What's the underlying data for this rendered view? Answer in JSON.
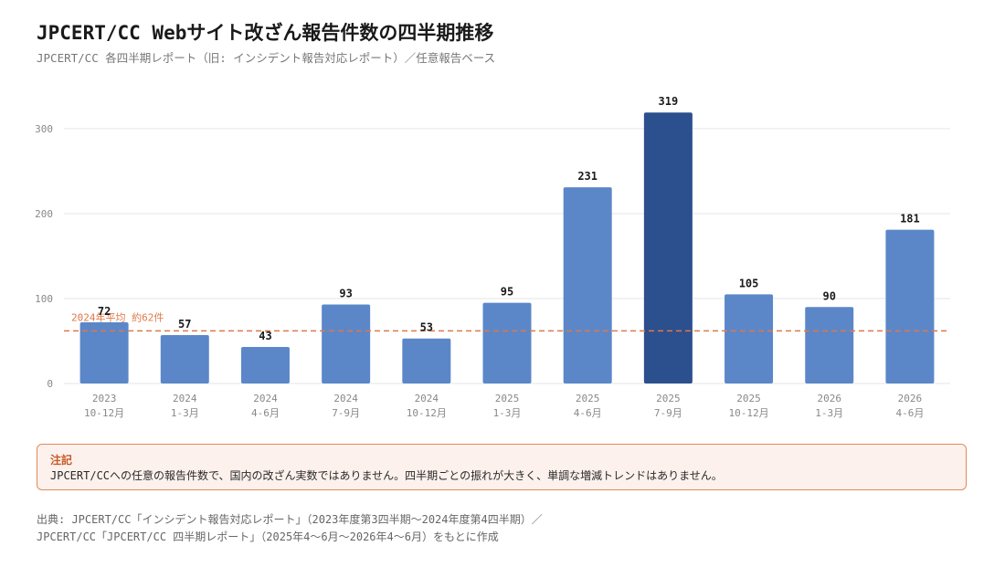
{
  "header": {
    "title": "JPCERT/CC Webサイト改ざん報告件数の四半期推移",
    "subtitle": "JPCERT/CC 各四半期レポート（旧: インシデント報告対応レポート）／任意報告ベース"
  },
  "chart_data": {
    "type": "bar",
    "categories": [
      [
        "2023",
        "10-12月"
      ],
      [
        "2024",
        "1-3月"
      ],
      [
        "2024",
        "4-6月"
      ],
      [
        "2024",
        "7-9月"
      ],
      [
        "2024",
        "10-12月"
      ],
      [
        "2025",
        "1-3月"
      ],
      [
        "2025",
        "4-6月"
      ],
      [
        "2025",
        "7-9月"
      ],
      [
        "2025",
        "10-12月"
      ],
      [
        "2026",
        "1-3月"
      ],
      [
        "2026",
        "4-6月"
      ]
    ],
    "values": [
      72,
      57,
      43,
      93,
      53,
      95,
      231,
      319,
      105,
      90,
      181
    ],
    "highlight_index": 7,
    "ylim": [
      0,
      330
    ],
    "yticks": [
      0,
      100,
      200,
      300
    ],
    "grid": true,
    "reference_line": {
      "value": 62,
      "label": "2024年平均 約62件"
    },
    "colors": {
      "bar": "#5b87c9",
      "highlight": "#2c4f8e",
      "reference": "#e07848",
      "grid": "#e6e6e6",
      "axis_text": "#888888",
      "value_text": "#1a1a1a"
    }
  },
  "note": {
    "title": "注記",
    "body": "JPCERT/CCへの任意の報告件数で、国内の改ざん実数ではありません。四半期ごとの振れが大きく、単調な増減トレンドはありません。"
  },
  "source": {
    "line1": "出典: JPCERT/CC「インシデント報告対応レポート」（2023年度第3四半期〜2024年度第4四半期）／",
    "line2": "JPCERT/CC「JPCERT/CC 四半期レポート」（2025年4〜6月〜2026年4〜6月）をもとに作成"
  }
}
